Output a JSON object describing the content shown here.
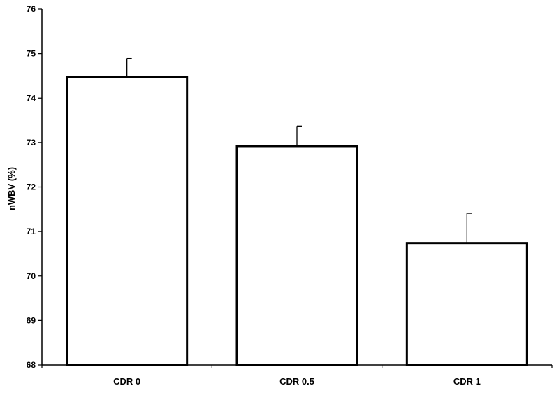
{
  "chart_data": {
    "type": "bar",
    "title": "",
    "xlabel": "",
    "ylabel": "nWBV (%)",
    "categories": [
      "CDR 0",
      "CDR 0.5",
      "CDR 1"
    ],
    "values": [
      74.47,
      72.92,
      70.74
    ],
    "error_bars": [
      0.42,
      0.45,
      0.67
    ],
    "ylim": [
      68,
      76
    ],
    "yticks": [
      68,
      69,
      70,
      71,
      72,
      73,
      74,
      75,
      76
    ],
    "grid": false,
    "legend": "none",
    "colors": {
      "bar_fill": "#ffffff",
      "bar_stroke": "#000000",
      "axis": "#000000",
      "background": "#ffffff"
    }
  }
}
